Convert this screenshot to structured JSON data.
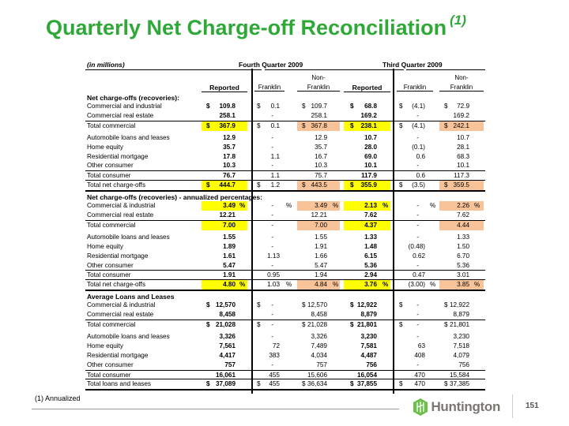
{
  "title": "Quarterly Net Charge-off Reconciliation",
  "title_footnote_marker": "(1)",
  "units_note": "(in millions)",
  "period_headers": [
    "Fourth Quarter 2009",
    "Third Quarter 2009"
  ],
  "column_headers": [
    {
      "line1": "",
      "line2": "Reported"
    },
    {
      "line1": "",
      "line2": "Franklin"
    },
    {
      "line1": "Non-",
      "line2": "Franklin"
    },
    {
      "line1": "",
      "line2": "Reported"
    },
    {
      "line1": "",
      "line2": "Franklin"
    },
    {
      "line1": "Non-",
      "line2": "Franklin"
    }
  ],
  "rows": [
    {
      "type": "section",
      "label": "Net charge-offs (recoveries):"
    },
    {
      "type": "data",
      "label": "Commercial and industrial",
      "cells": [
        "$|109.8|",
        "$|0.1|",
        "$|109.7|",
        "$|68.8|",
        "$|(4.1)|",
        "$|72.9|"
      ]
    },
    {
      "type": "data",
      "label": "Commercial real estate",
      "cells": [
        "|258.1|",
        "|-|",
        "|258.1|",
        "|169.2|",
        "|-|",
        "|169.2|"
      ]
    },
    {
      "type": "total",
      "highlight": true,
      "label": "Total commercial",
      "cells": [
        "$|367.9|",
        "$|0.1|",
        "$|367.8|",
        "$|238.1|",
        "$|(4.1)|",
        "$|242.1|"
      ]
    },
    {
      "type": "data",
      "gap": true,
      "label": "Automobile loans and leases",
      "cells": [
        "|12.9|",
        "|-|",
        "|12.9|",
        "|10.7|",
        "|-|",
        "|10.7|"
      ]
    },
    {
      "type": "data",
      "label": "Home equity",
      "cells": [
        "|35.7|",
        "|-|",
        "|35.7|",
        "|28.0|",
        "|(0.1)|",
        "|28.1|"
      ]
    },
    {
      "type": "data",
      "label": "Residential mortgage",
      "cells": [
        "|17.8|",
        "|1.1|",
        "|16.7|",
        "|69.0|",
        "|0.6|",
        "|68.3|"
      ]
    },
    {
      "type": "data",
      "label": "Other consumer",
      "cells": [
        "|10.3|",
        "|-|",
        "|10.3|",
        "|10.1|",
        "|-|",
        "|10.1|"
      ]
    },
    {
      "type": "total",
      "label": "Total consumer",
      "cells": [
        "|76.7|",
        "|1.1|",
        "|75.7|",
        "|117.9|",
        "|0.6|",
        "|117.3|"
      ]
    },
    {
      "type": "total",
      "last": true,
      "highlight": true,
      "label": "Total net charge-offs",
      "cells": [
        "$|444.7|",
        "$|1.2|",
        "$|443.5|",
        "$|355.9|",
        "$|(3.5)|",
        "$|359.5|"
      ]
    },
    {
      "type": "section",
      "label": "Net charge-offs (recoveries) - annualized percentages:"
    },
    {
      "type": "data",
      "highlight": true,
      "label": "Commercial & industrial",
      "cells": [
        "|3.49|%",
        "|-|%",
        "|3.49|%",
        "|2.13|%",
        "|-|%",
        "|2.26|%"
      ]
    },
    {
      "type": "data",
      "label": "Commercial real estate",
      "cells": [
        "|12.21|",
        "|-|",
        "|12.21|",
        "|7.62|",
        "|-|",
        "|7.62|"
      ]
    },
    {
      "type": "total",
      "highlight": true,
      "label": "Total commercial",
      "cells": [
        "|7.00|",
        "|-|",
        "|7.00|",
        "|4.37|",
        "|-|",
        "|4.44|"
      ]
    },
    {
      "type": "data",
      "gap": true,
      "label": "Automobile loans and leases",
      "cells": [
        "|1.55|",
        "|-|",
        "|1.55|",
        "|1.33|",
        "|-|",
        "|1.33|"
      ]
    },
    {
      "type": "data",
      "label": "Home equity",
      "cells": [
        "|1.89|",
        "|-|",
        "|1.91|",
        "|1.48|",
        "|(0.48)|",
        "|1.50|"
      ]
    },
    {
      "type": "data",
      "label": "Residential mortgage",
      "cells": [
        "|1.61|",
        "|1.13|",
        "|1.66|",
        "|6.15|",
        "|0.62|",
        "|6.70|"
      ]
    },
    {
      "type": "data",
      "label": "Other consumer",
      "cells": [
        "|5.47|",
        "|-|",
        "|5.47|",
        "|5.36|",
        "|-|",
        "|5.36|"
      ]
    },
    {
      "type": "total",
      "label": "Total consumer",
      "cells": [
        "|1.91|",
        "|0.95|",
        "|1.94|",
        "|2.94|",
        "|0.47|",
        "|3.01|"
      ]
    },
    {
      "type": "total",
      "last": true,
      "highlight": true,
      "label": "Total net charge-offs",
      "cells": [
        "|4.80|%",
        "|1.03|%",
        "|4.84|%",
        "|3.76|%",
        "|(3.00)|%",
        "|3.85|%"
      ]
    },
    {
      "type": "section",
      "label": "Average Loans and Leases"
    },
    {
      "type": "data",
      "label": "Commercial & industrial",
      "cells": [
        "$|12,570|",
        "$|-|",
        "$|12,570|",
        "$|12,922|",
        "$|-|",
        "$|12,922|"
      ]
    },
    {
      "type": "data",
      "label": "Commercial real estate",
      "cells": [
        "|8,458|",
        "|-|",
        "|8,458|",
        "|8,879|",
        "|-|",
        "|8,879|"
      ]
    },
    {
      "type": "total",
      "label": "Total commercial",
      "cells": [
        "$|21,028|",
        "$|-|",
        "$|21,028|",
        "$|21,801|",
        "$|-|",
        "$|21,801|"
      ]
    },
    {
      "type": "data",
      "gap": true,
      "label": "Automobile loans and leases",
      "cells": [
        "|3,326|",
        "|-|",
        "|3,326|",
        "|3,230|",
        "|-|",
        "|3,230|"
      ]
    },
    {
      "type": "data",
      "label": "Home equity",
      "cells": [
        "|7,561|",
        "|72|",
        "|7,489|",
        "|7,581|",
        "|63|",
        "|7,518|"
      ]
    },
    {
      "type": "data",
      "label": "Residential mortgage",
      "cells": [
        "|4,417|",
        "|383|",
        "|4,034|",
        "|4,487|",
        "|408|",
        "|4,079|"
      ]
    },
    {
      "type": "data",
      "label": "Other consumer",
      "cells": [
        "|757|",
        "|-|",
        "|757|",
        "|756|",
        "|-|",
        "|756|"
      ]
    },
    {
      "type": "total",
      "label": "Total consumer",
      "cells": [
        "|16,061|",
        "|455|",
        "|15,606|",
        "|16,054|",
        "|470|",
        "|15,584|"
      ]
    },
    {
      "type": "total",
      "last": true,
      "label": "Total loans and leases",
      "cells": [
        "$|37,089|",
        "$|455|",
        "$|36,634|",
        "$|37,855|",
        "$|470|",
        "$|37,385|"
      ]
    }
  ],
  "footnote": "(1)  Annualized",
  "logo_text": "Huntington",
  "page_number": "151",
  "colors": {
    "title": "#2ea836",
    "reported_highlight": "#ffff00",
    "non_franklin_highlight": "#f9c39a",
    "logo_text": "#7a7670",
    "logo_mark": "#6cc04a"
  }
}
